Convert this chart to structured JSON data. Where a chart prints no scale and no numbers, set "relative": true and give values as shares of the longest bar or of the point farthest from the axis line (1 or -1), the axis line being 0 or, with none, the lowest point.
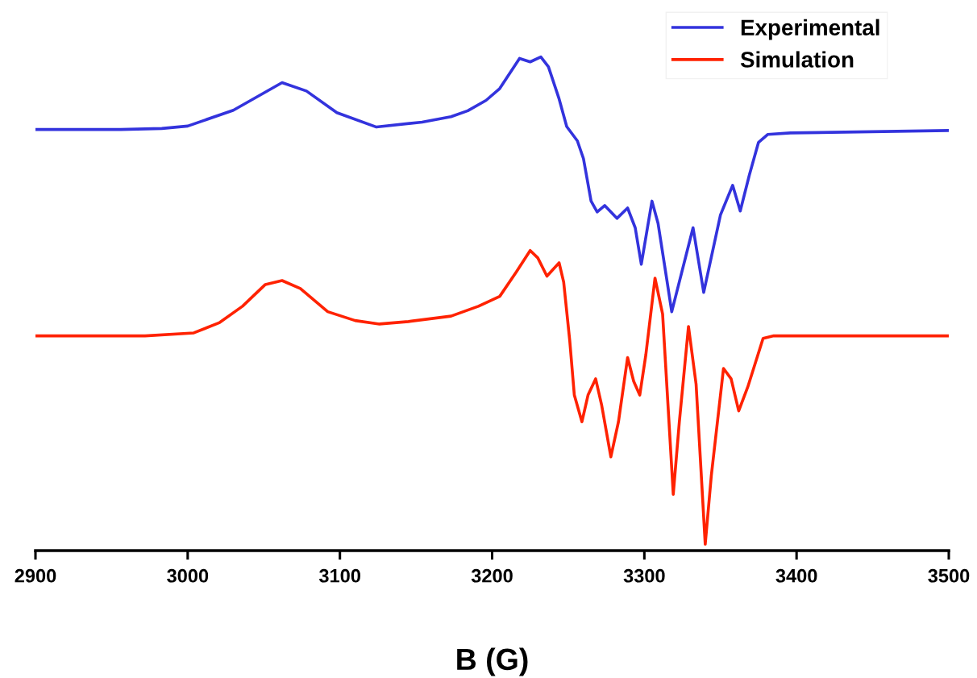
{
  "chart_data": {
    "type": "line",
    "xlabel": "B (G)",
    "relative": true,
    "xlim": [
      2900,
      3500
    ],
    "xticks": [
      2900,
      3000,
      3100,
      3200,
      3300,
      3400,
      3500
    ],
    "legend": "top right",
    "grid": false,
    "marker": "none",
    "line_style": "solid",
    "tick_labels": "x",
    "series": [
      {
        "name": "Experimental",
        "color": "#3333dd",
        "x": [
          2900,
          2956,
          2983,
          3000,
          3030,
          3062,
          3078,
          3098,
          3124,
          3154,
          3173,
          3184,
          3196,
          3205,
          3218,
          3225,
          3232,
          3237,
          3244,
          3249,
          3256,
          3260,
          3265,
          3269,
          3274,
          3282,
          3289,
          3294,
          3298,
          3305,
          3309,
          3315,
          3318,
          3332,
          3339,
          3350,
          3358,
          3363,
          3369,
          3375,
          3381,
          3396,
          3500
        ],
        "values": [
          0.853,
          0.853,
          0.855,
          0.86,
          0.892,
          0.948,
          0.931,
          0.887,
          0.858,
          0.868,
          0.879,
          0.891,
          0.912,
          0.936,
          0.997,
          0.99,
          1.0,
          0.98,
          0.915,
          0.859,
          0.83,
          0.794,
          0.708,
          0.686,
          0.699,
          0.673,
          0.694,
          0.654,
          0.58,
          0.708,
          0.663,
          0.544,
          0.484,
          0.654,
          0.523,
          0.68,
          0.74,
          0.688,
          0.761,
          0.827,
          0.843,
          0.846,
          0.851
        ]
      },
      {
        "name": "Simulation",
        "color": "#ff2200",
        "x": [
          2900,
          2972,
          3004,
          3021,
          3036,
          3051,
          3062,
          3074,
          3092,
          3110,
          3126,
          3145,
          3173,
          3191,
          3205,
          3216,
          3225,
          3230,
          3236,
          3244,
          3247,
          3251,
          3254,
          3259,
          3263,
          3268,
          3272,
          3278,
          3283,
          3289,
          3293,
          3297,
          3301,
          3307,
          3312,
          3319,
          3323,
          3329,
          3334,
          3340,
          3344,
          3352,
          3357,
          3362,
          3368,
          3378,
          3385,
          3500
        ],
        "values": [
          0.435,
          0.435,
          0.441,
          0.462,
          0.495,
          0.539,
          0.547,
          0.531,
          0.484,
          0.466,
          0.459,
          0.464,
          0.475,
          0.495,
          0.515,
          0.565,
          0.608,
          0.593,
          0.556,
          0.583,
          0.544,
          0.425,
          0.315,
          0.261,
          0.315,
          0.348,
          0.294,
          0.19,
          0.261,
          0.391,
          0.343,
          0.315,
          0.397,
          0.552,
          0.479,
          0.114,
          0.261,
          0.454,
          0.337,
          0.013,
          0.152,
          0.369,
          0.348,
          0.283,
          0.332,
          0.43,
          0.435,
          0.435
        ]
      }
    ]
  }
}
